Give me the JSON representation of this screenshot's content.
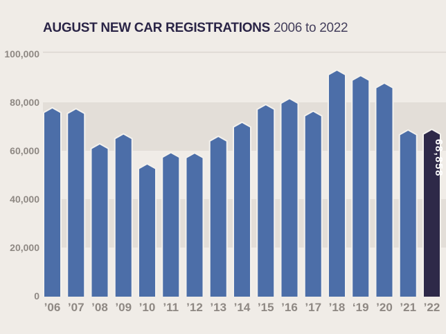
{
  "title": {
    "main": "AUGUST NEW CAR REGISTRATIONS",
    "range": "2006 to 2022"
  },
  "chart_data": {
    "type": "bar",
    "title": "AUGUST NEW CAR REGISTRATIONS 2006 to 2022",
    "categories": [
      "’06",
      "’07",
      "’08",
      "’09",
      "’10",
      "’11",
      "’12",
      "’13",
      "’14",
      "’15",
      "’16",
      "’17",
      "’18",
      "‘19",
      "’20",
      "’21",
      "’22"
    ],
    "values": [
      77800,
      77400,
      62900,
      67000,
      54600,
      59300,
      59100,
      66000,
      71800,
      79100,
      81600,
      76400,
      93400,
      91100,
      88000,
      68600,
      68858
    ],
    "highlight": {
      "index": 16,
      "label": "68,858"
    },
    "xlabel": "",
    "ylabel": "",
    "ylim": [
      0,
      100000
    ],
    "yticks": [
      {
        "value": 0,
        "label": "0"
      },
      {
        "value": 20000,
        "label": "20,000"
      },
      {
        "value": 40000,
        "label": "40,000"
      },
      {
        "value": 60000,
        "label": "60,000"
      },
      {
        "value": 80000,
        "label": "80,000"
      },
      {
        "value": 100000,
        "label": "100,000"
      }
    ],
    "bands": [
      {
        "from": 60000,
        "to": 80000
      },
      {
        "from": 20000,
        "to": 40000
      }
    ],
    "legend": "none",
    "grid": "single-top-line",
    "colors": {
      "background": "#f0ece7",
      "band": "#e3ded8",
      "bar": "#4c6ea8",
      "highlight_bar": "#2e2948",
      "bar_outline": "#f3f1ed",
      "gridline": "#dbd6d0",
      "axis_label": "#8e8883",
      "value_label": "#ffffff",
      "title_main": "#2a2446",
      "title_range": "#443f5c"
    }
  }
}
